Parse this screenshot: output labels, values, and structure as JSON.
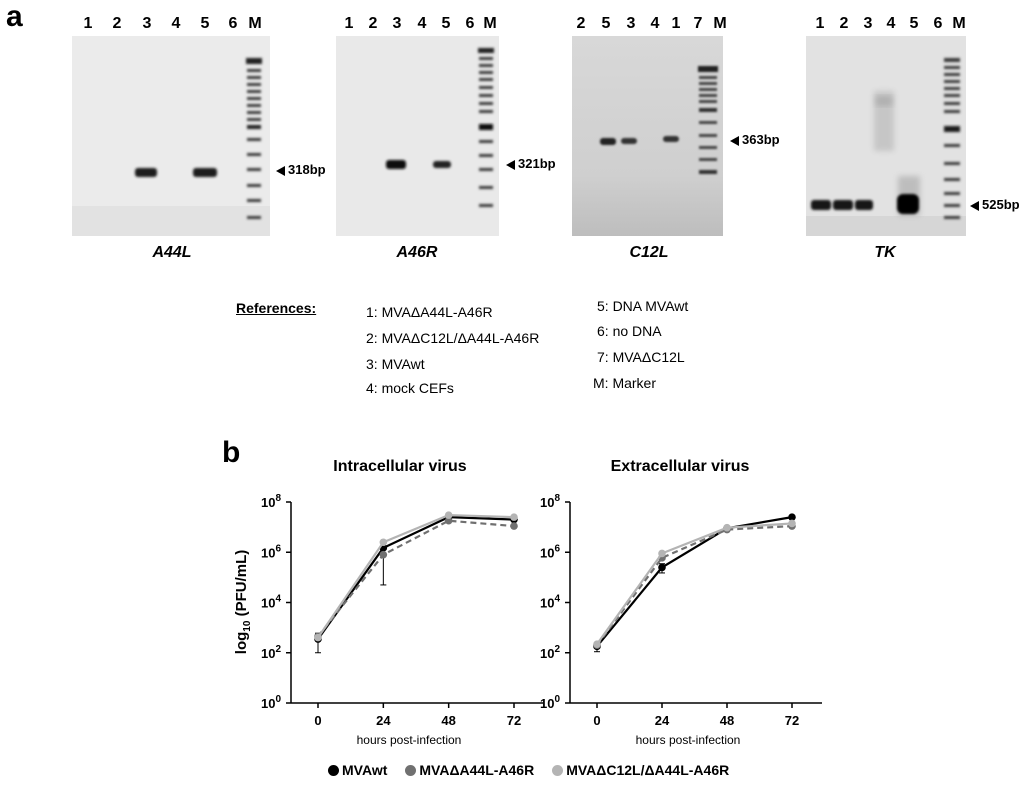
{
  "panel_a": {
    "letter": "a",
    "gels": [
      {
        "id": "A44L",
        "gene": "A44L",
        "lanes": [
          "1",
          "2",
          "3",
          "4",
          "5",
          "6",
          "M"
        ],
        "size_label": "318bp",
        "bg": "#ebebeb"
      },
      {
        "id": "A46R",
        "gene": "A46R",
        "lanes": [
          "1",
          "2",
          "3",
          "4",
          "5",
          "6",
          "M"
        ],
        "size_label": "321bp",
        "bg": "#e9e9e9"
      },
      {
        "id": "C12L",
        "gene": "C12L",
        "lanes": [
          "2",
          "5",
          "3",
          "4",
          "1",
          "7",
          "M"
        ],
        "size_label": "363bp",
        "bg": "#d2d2d2"
      },
      {
        "id": "TK",
        "gene": "TK",
        "lanes": [
          "1",
          "2",
          "3",
          "4",
          "5",
          "6",
          "M"
        ],
        "size_label": "525bp",
        "bg": "#e2e2e2"
      }
    ],
    "references": {
      "title": "References:",
      "col1": [
        "1: MVAΔA44L-A46R",
        "2: MVAΔC12L/ΔA44L-A46R",
        "3: MVAwt",
        "4: mock CEFs"
      ],
      "col2": [
        "5: DNA MVAwt",
        "6: no DNA",
        "7: MVAΔC12L",
        "M: Marker"
      ]
    }
  },
  "panel_b": {
    "letter": "b"
  },
  "chart_data": [
    {
      "type": "line",
      "title": "Intracellular virus",
      "xlabel": "hours post-infection",
      "ylabel": "log10 (PFU/mL)",
      "x": [
        0,
        24,
        48,
        72
      ],
      "xticks": [
        "0",
        "24",
        "48",
        "72"
      ],
      "ylog": true,
      "ylim": [
        1,
        100000000
      ],
      "yticks": [
        "10^0",
        "10^2",
        "10^4",
        "10^6",
        "10^8"
      ],
      "series": [
        {
          "name": "MVAwt",
          "values": [
            350,
            1500000,
            25000000,
            20000000
          ],
          "err": [
            250,
            0,
            0,
            0
          ],
          "color": "#000000",
          "dash": false
        },
        {
          "name": "MVAΔA44L-A46R",
          "values": [
            450,
            800000,
            18000000,
            11000000
          ],
          "err": [
            0,
            750000,
            0,
            0
          ],
          "color": "#707070",
          "dash": true
        },
        {
          "name": "MVAΔC12L/ΔA44L-A46R",
          "values": [
            400,
            2500000,
            30000000,
            25000000
          ],
          "err": [
            0,
            0,
            0,
            0
          ],
          "color": "#b4b4b4",
          "dash": false
        }
      ]
    },
    {
      "type": "line",
      "title": "Extracellular virus",
      "xlabel": "hours post-infection",
      "ylabel": "",
      "x": [
        0,
        24,
        48,
        72
      ],
      "xticks": [
        "0",
        "24",
        "48",
        "72"
      ],
      "ylog": true,
      "ylim": [
        1,
        100000000
      ],
      "yticks": [
        "10^0",
        "10^2",
        "10^4",
        "10^6",
        "10^8"
      ],
      "series": [
        {
          "name": "MVAwt",
          "values": [
            180,
            250000,
            9000000,
            25000000
          ],
          "err": [
            70,
            100000,
            0,
            0
          ],
          "color": "#000000",
          "dash": false
        },
        {
          "name": "MVAΔA44L-A46R",
          "values": [
            200,
            600000,
            8000000,
            11000000
          ],
          "err": [
            0,
            0,
            0,
            0
          ],
          "color": "#707070",
          "dash": true
        },
        {
          "name": "MVAΔC12L/ΔA44L-A46R",
          "values": [
            220,
            900000,
            9500000,
            14000000
          ],
          "err": [
            0,
            0,
            0,
            0
          ],
          "color": "#b4b4b4",
          "dash": false
        }
      ]
    }
  ],
  "legend": [
    {
      "name": "MVAwt",
      "color": "#000000"
    },
    {
      "name": "MVAΔA44L-A46R",
      "color": "#707070"
    },
    {
      "name": "MVAΔC12L/ΔA44L-A46R",
      "color": "#b4b4b4"
    }
  ]
}
